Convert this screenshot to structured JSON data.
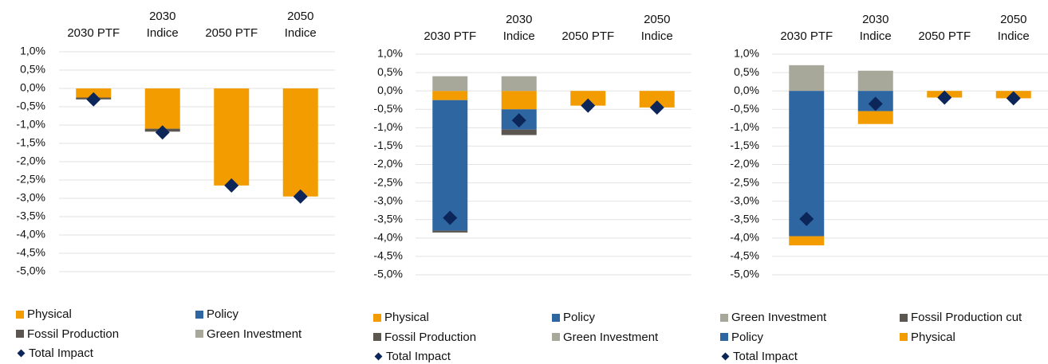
{
  "chart_data": [
    {
      "type": "bar",
      "stacked": true,
      "grid": true,
      "categories": [
        "2030 PTF",
        "2030 Indice",
        "2050 PTF",
        "2050 Indice"
      ],
      "series": [
        {
          "name": "Physical",
          "color": "#f39c00",
          "values": [
            -0.25,
            -1.1,
            -2.65,
            -2.95
          ]
        },
        {
          "name": "Policy",
          "color": "#2e66a2",
          "values": [
            0,
            0,
            0,
            0
          ]
        },
        {
          "name": "Fossil Production",
          "color": "#5b5750",
          "values": [
            -0.05,
            -0.08,
            0,
            0
          ]
        },
        {
          "name": "Green Investment",
          "color": "#a8a89a",
          "values": [
            0,
            0,
            0,
            0
          ]
        }
      ],
      "total": {
        "name": "Total Impact",
        "color": "#0c2659",
        "values": [
          -0.3,
          -1.2,
          -2.65,
          -2.95
        ]
      },
      "ylim": [
        -5,
        1
      ],
      "yticks": [
        {
          "value": 1,
          "label": "1,0%"
        },
        {
          "value": 0.5,
          "label": "0,5%"
        },
        {
          "value": 0,
          "label": "0,0%"
        },
        {
          "value": -0.5,
          "label": "-0,5%"
        },
        {
          "value": -1,
          "label": "-1,0%"
        },
        {
          "value": -1.5,
          "label": "-1,5%"
        },
        {
          "value": -2,
          "label": "-2,0%"
        },
        {
          "value": -2.5,
          "label": "-2,5%"
        },
        {
          "value": -3,
          "label": "-3,0%"
        },
        {
          "value": -3.5,
          "label": "-3,5%"
        },
        {
          "value": -4,
          "label": "-4,0%"
        },
        {
          "value": -4.5,
          "label": "-4,5%"
        },
        {
          "value": -5,
          "label": "-5,0%"
        }
      ]
    },
    {
      "type": "bar",
      "stacked": true,
      "grid": true,
      "categories": [
        "2030 PTF",
        "2030 Indice",
        "2050 PTF",
        "2050 Indice"
      ],
      "series": [
        {
          "name": "Physical",
          "color": "#f39c00",
          "values": [
            -0.25,
            -0.5,
            -0.4,
            -0.45
          ]
        },
        {
          "name": "Policy",
          "color": "#2e66a2",
          "values": [
            -3.55,
            -0.55,
            0,
            0
          ]
        },
        {
          "name": "Fossil Production",
          "color": "#5b5750",
          "values": [
            -0.05,
            -0.15,
            0,
            0
          ]
        },
        {
          "name": "Green Investment",
          "color": "#a8a89a",
          "values": [
            0.4,
            0.4,
            0,
            0
          ]
        }
      ],
      "total": {
        "name": "Total Impact",
        "color": "#0c2659",
        "values": [
          -3.45,
          -0.8,
          -0.4,
          -0.45
        ]
      },
      "ylim": [
        -5,
        1
      ],
      "yticks": [
        {
          "value": 1,
          "label": "1,0%"
        },
        {
          "value": 0.5,
          "label": "0,5%"
        },
        {
          "value": 0,
          "label": "0,0%"
        },
        {
          "value": -0.5,
          "label": "-0,5%"
        },
        {
          "value": -1,
          "label": "-1,0%"
        },
        {
          "value": -1.5,
          "label": "-1,5%"
        },
        {
          "value": -2,
          "label": "-2,0%"
        },
        {
          "value": -2.5,
          "label": "-2,5%"
        },
        {
          "value": -3,
          "label": "-3,0%"
        },
        {
          "value": -3.5,
          "label": "-3,5%"
        },
        {
          "value": -4,
          "label": "-4,0%"
        },
        {
          "value": -4.5,
          "label": "-4,5%"
        },
        {
          "value": -5,
          "label": "-5,0%"
        }
      ]
    },
    {
      "type": "bar",
      "stacked": true,
      "grid": true,
      "categories": [
        "2030 PTF",
        "2030 Indice",
        "2050 PTF",
        "2050 Indice"
      ],
      "series": [
        {
          "name": "Green Investment",
          "color": "#a8a89a",
          "values": [
            0.7,
            0.55,
            0,
            0
          ]
        },
        {
          "name": "Fossil Production cut",
          "color": "#5b5750",
          "values": [
            0,
            0,
            0,
            0
          ]
        },
        {
          "name": "Policy",
          "color": "#2e66a2",
          "values": [
            -3.95,
            -0.55,
            0,
            0
          ]
        },
        {
          "name": "Physical",
          "color": "#f39c00",
          "values": [
            -0.25,
            -0.35,
            -0.18,
            -0.2
          ]
        }
      ],
      "total": {
        "name": "Total Impact",
        "color": "#0c2659",
        "values": [
          -3.48,
          -0.35,
          -0.18,
          -0.2
        ]
      },
      "ylim": [
        -5,
        1
      ],
      "yticks": [
        {
          "value": 1,
          "label": "1,0%"
        },
        {
          "value": 0.5,
          "label": "0,5%"
        },
        {
          "value": 0,
          "label": "0,0%"
        },
        {
          "value": -0.5,
          "label": "-0,5%"
        },
        {
          "value": -1,
          "label": "-1,0%"
        },
        {
          "value": -1.5,
          "label": "-1,5%"
        },
        {
          "value": -2,
          "label": "-2,0%"
        },
        {
          "value": -2.5,
          "label": "-2,5%"
        },
        {
          "value": -3,
          "label": "-3,0%"
        },
        {
          "value": -3.5,
          "label": "-3,5%"
        },
        {
          "value": -4,
          "label": "-4,0%"
        },
        {
          "value": -4.5,
          "label": "-4,5%"
        },
        {
          "value": -5,
          "label": "-5,0%"
        }
      ]
    }
  ]
}
